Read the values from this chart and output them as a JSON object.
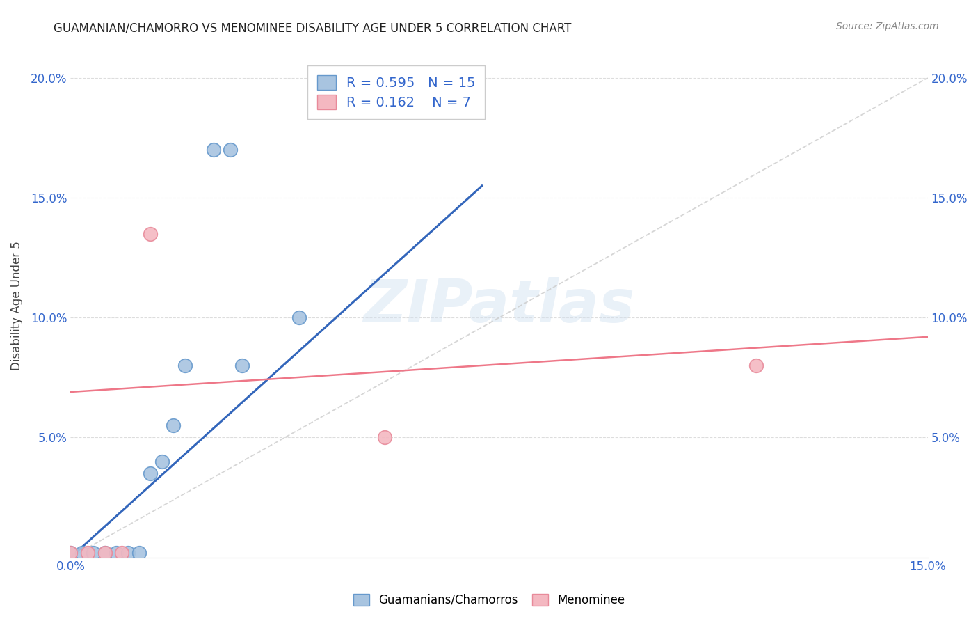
{
  "title": "GUAMANIAN/CHAMORRO VS MENOMINEE DISABILITY AGE UNDER 5 CORRELATION CHART",
  "source": "Source: ZipAtlas.com",
  "ylabel": "Disability Age Under 5",
  "xlim": [
    0,
    0.15
  ],
  "ylim": [
    0,
    0.21
  ],
  "xtick_labeled": [
    0.0,
    0.15
  ],
  "xtick_minor": [
    0.0,
    0.015,
    0.03,
    0.045,
    0.06,
    0.075,
    0.09,
    0.105,
    0.12,
    0.135,
    0.15
  ],
  "yticks_left": [
    0.05,
    0.1,
    0.15,
    0.2
  ],
  "yticks_right": [
    0.05,
    0.1,
    0.15,
    0.2
  ],
  "blue_color": "#A8C4E0",
  "pink_color": "#F4B8C1",
  "blue_edge": "#6699CC",
  "pink_edge": "#E88A9A",
  "line_blue": "#3366BB",
  "line_pink": "#EE7788",
  "diag_color": "#CCCCCC",
  "legend_R_blue": "0.595",
  "legend_N_blue": "15",
  "legend_R_pink": "0.162",
  "legend_N_pink": "7",
  "blue_points_x": [
    0.0,
    0.002,
    0.004,
    0.006,
    0.008,
    0.01,
    0.012,
    0.014,
    0.016,
    0.018,
    0.02,
    0.025,
    0.028,
    0.03,
    0.04
  ],
  "blue_points_y": [
    0.002,
    0.002,
    0.002,
    0.002,
    0.002,
    0.002,
    0.002,
    0.035,
    0.04,
    0.055,
    0.08,
    0.17,
    0.17,
    0.08,
    0.1
  ],
  "pink_points_x": [
    0.0,
    0.003,
    0.006,
    0.009,
    0.014,
    0.055,
    0.12
  ],
  "pink_points_y": [
    0.002,
    0.002,
    0.002,
    0.002,
    0.135,
    0.05,
    0.08
  ],
  "blue_line_x": [
    0.0,
    0.072
  ],
  "blue_line_y": [
    0.0,
    0.155
  ],
  "pink_line_x": [
    0.0,
    0.15
  ],
  "pink_line_y": [
    0.069,
    0.092
  ],
  "diag_line_x": [
    0.0,
    0.15
  ],
  "diag_line_y": [
    0.0,
    0.2
  ],
  "watermark_text": "ZIPatlas",
  "marker_size": 200,
  "legend_label_blue": "Guamanians/Chamorros",
  "legend_label_pink": "Menominee"
}
